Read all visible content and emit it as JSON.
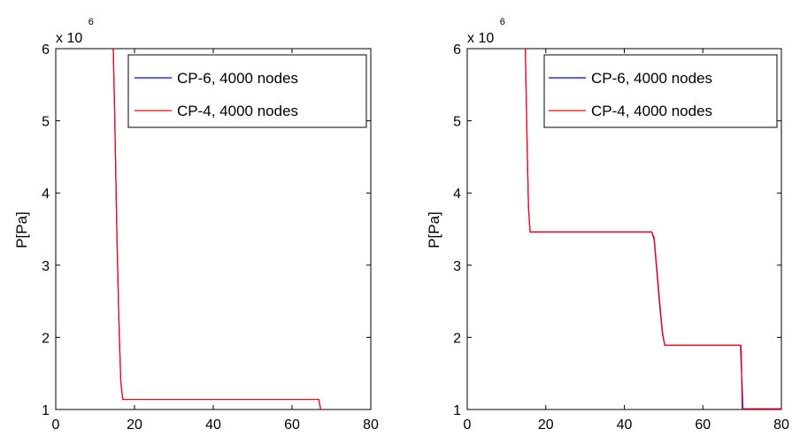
{
  "chart_data": [
    {
      "type": "line",
      "xlim": [
        0,
        80
      ],
      "ylim": [
        1000000,
        6000000
      ],
      "xticks": [
        "0",
        "20",
        "40",
        "60",
        "80"
      ],
      "yticks": [
        "1",
        "2",
        "3",
        "4",
        "5",
        "6"
      ],
      "y_exponent_base": "x 10",
      "y_exponent_power": "6",
      "ylabel": "P[Pa]",
      "legend_position": "top-right",
      "series": [
        {
          "name": "CP-6, 4000 nodes",
          "color": "#0000ff",
          "x": [
            14.6,
            15.0,
            15.5,
            16.0,
            16.5,
            17.0,
            30,
            50,
            66.8,
            67.0,
            67.3
          ],
          "y": [
            6000000,
            5000000,
            3500000,
            2300000,
            1400000,
            1140000,
            1140000,
            1140000,
            1140000,
            1080000,
            1000000
          ]
        },
        {
          "name": "CP-4, 4000 nodes",
          "color": "#ff0000",
          "x": [
            14.6,
            15.0,
            15.5,
            16.0,
            16.5,
            17.0,
            30,
            50,
            66.8,
            67.0,
            67.3
          ],
          "y": [
            6000000,
            5000000,
            3500000,
            2300000,
            1400000,
            1140000,
            1140000,
            1140000,
            1140000,
            1080000,
            1000000
          ]
        }
      ]
    },
    {
      "type": "line",
      "xlim": [
        0,
        80
      ],
      "ylim": [
        1000000,
        6000000
      ],
      "xticks": [
        "0",
        "20",
        "40",
        "60",
        "80"
      ],
      "yticks": [
        "1",
        "2",
        "3",
        "4",
        "5",
        "6"
      ],
      "y_exponent_base": "x 10",
      "y_exponent_power": "6",
      "ylabel": "P[Pa]",
      "legend_position": "top-right",
      "series": [
        {
          "name": "CP-6, 4000 nodes",
          "color": "#0000ff",
          "x": [
            14.8,
            15.2,
            15.6,
            16.0,
            30,
            47.0,
            47.6,
            48.3,
            49.0,
            49.7,
            50.3,
            60,
            69.6,
            69.8,
            70.0,
            70.2,
            75,
            80
          ],
          "y": [
            6000000,
            4800000,
            3800000,
            3460000,
            3460000,
            3460000,
            3350000,
            2900000,
            2450000,
            2050000,
            1890000,
            1890000,
            1890000,
            1550000,
            1350000,
            1010000,
            1010000,
            1010000
          ]
        },
        {
          "name": "CP-4, 4000 nodes",
          "color": "#ff0000",
          "x": [
            14.8,
            15.2,
            15.6,
            16.0,
            30,
            47.0,
            47.6,
            48.3,
            49.0,
            49.7,
            50.3,
            60,
            69.7,
            69.8,
            70.0,
            75,
            80
          ],
          "y": [
            6000000,
            4800000,
            3800000,
            3460000,
            3460000,
            3460000,
            3380000,
            2950000,
            2500000,
            2080000,
            1890000,
            1890000,
            1890000,
            1800000,
            1010000,
            1010000,
            1010000
          ]
        }
      ]
    }
  ]
}
